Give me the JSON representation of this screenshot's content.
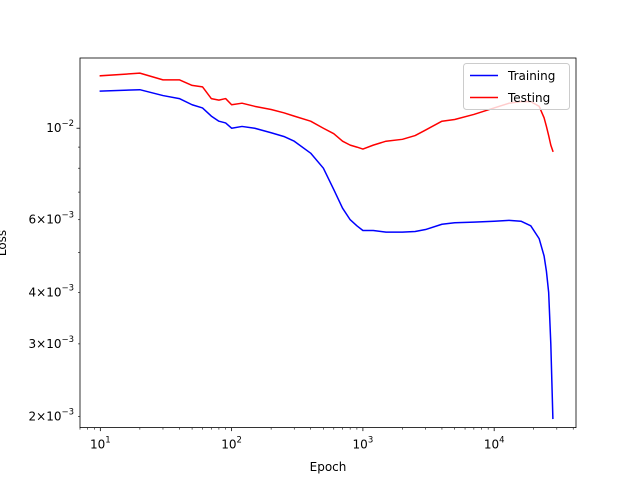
{
  "chart_data": {
    "type": "line",
    "title": "",
    "xlabel": "Epoch",
    "ylabel": "Loss",
    "xscale": "log",
    "yscale": "log",
    "xlim": [
      7,
      42000
    ],
    "ylim": [
      0.00188,
      0.0148
    ],
    "grid": false,
    "legend_position": "top-right",
    "x_ticks": [
      {
        "value": 10,
        "base": "10",
        "exp": "1"
      },
      {
        "value": 100,
        "base": "10",
        "exp": "2"
      },
      {
        "value": 1000,
        "base": "10",
        "exp": "3"
      },
      {
        "value": 10000,
        "base": "10",
        "exp": "4"
      }
    ],
    "y_ticks": [
      {
        "value": 0.002,
        "mant": "2",
        "exp": "−3"
      },
      {
        "value": 0.003,
        "mant": "3",
        "exp": "−3"
      },
      {
        "value": 0.004,
        "mant": "4",
        "exp": "−3"
      },
      {
        "value": 0.006,
        "mant": "6",
        "exp": "−3"
      },
      {
        "value": 0.01,
        "mant": "",
        "exp": "−2"
      }
    ],
    "series": [
      {
        "name": "Training",
        "color": "#0000ff",
        "x": [
          10,
          20,
          30,
          40,
          50,
          60,
          70,
          80,
          90,
          100,
          120,
          150,
          200,
          250,
          300,
          400,
          500,
          600,
          700,
          800,
          900,
          1000,
          1200,
          1500,
          2000,
          2500,
          3000,
          4000,
          5000,
          7000,
          10000,
          13000,
          16000,
          19000,
          22000,
          24000,
          25000,
          26000,
          27000,
          28000
        ],
        "y": [
          0.0123,
          0.0124,
          0.012,
          0.0118,
          0.0114,
          0.0112,
          0.0107,
          0.0104,
          0.0103,
          0.01,
          0.0101,
          0.01,
          0.00975,
          0.00955,
          0.0093,
          0.0087,
          0.008,
          0.0071,
          0.0064,
          0.006,
          0.0058,
          0.00565,
          0.00565,
          0.0056,
          0.0056,
          0.00562,
          0.00568,
          0.00585,
          0.0059,
          0.00592,
          0.00595,
          0.00598,
          0.00595,
          0.0058,
          0.0054,
          0.0049,
          0.0045,
          0.004,
          0.003,
          0.00198
        ]
      },
      {
        "name": "Testing",
        "color": "#ff0000",
        "x": [
          10,
          20,
          30,
          40,
          50,
          60,
          70,
          80,
          90,
          100,
          120,
          150,
          200,
          250,
          300,
          400,
          500,
          600,
          700,
          800,
          900,
          1000,
          1200,
          1500,
          2000,
          2500,
          3000,
          4000,
          5000,
          7000,
          10000,
          13000,
          16000,
          19000,
          22000,
          24000,
          25000,
          26000,
          27000,
          28000
        ],
        "y": [
          0.0134,
          0.0136,
          0.0131,
          0.0131,
          0.0127,
          0.0126,
          0.0118,
          0.0117,
          0.0118,
          0.0114,
          0.0115,
          0.0113,
          0.0111,
          0.0109,
          0.0107,
          0.0104,
          0.01,
          0.0097,
          0.0093,
          0.0091,
          0.009,
          0.0089,
          0.0091,
          0.0093,
          0.0094,
          0.0096,
          0.0099,
          0.0104,
          0.0105,
          0.0108,
          0.0112,
          0.0115,
          0.0116,
          0.0116,
          0.0113,
          0.0106,
          0.0101,
          0.0096,
          0.0091,
          0.0088
        ]
      }
    ]
  }
}
